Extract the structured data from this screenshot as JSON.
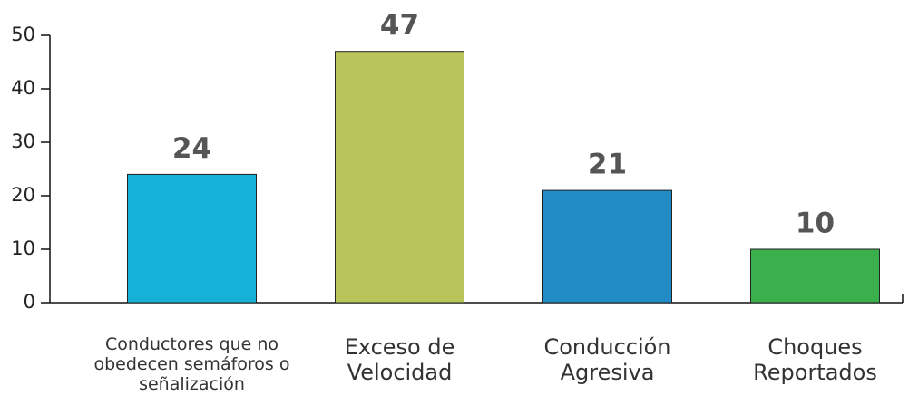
{
  "chart_data": {
    "type": "bar",
    "categories": [
      "Conductores que no obedecen semáforos o señalización",
      "Exceso de Velocidad",
      "Conducción Agresiva",
      "Choques Reportados"
    ],
    "values": [
      24,
      47,
      21,
      10
    ],
    "colors": [
      "#15b1d6",
      "#b9c55a",
      "#208bc4",
      "#3aaf4b"
    ],
    "ylim": [
      0,
      50
    ],
    "yticks": [
      0,
      10,
      20,
      30,
      40,
      50
    ],
    "grid": false
  }
}
